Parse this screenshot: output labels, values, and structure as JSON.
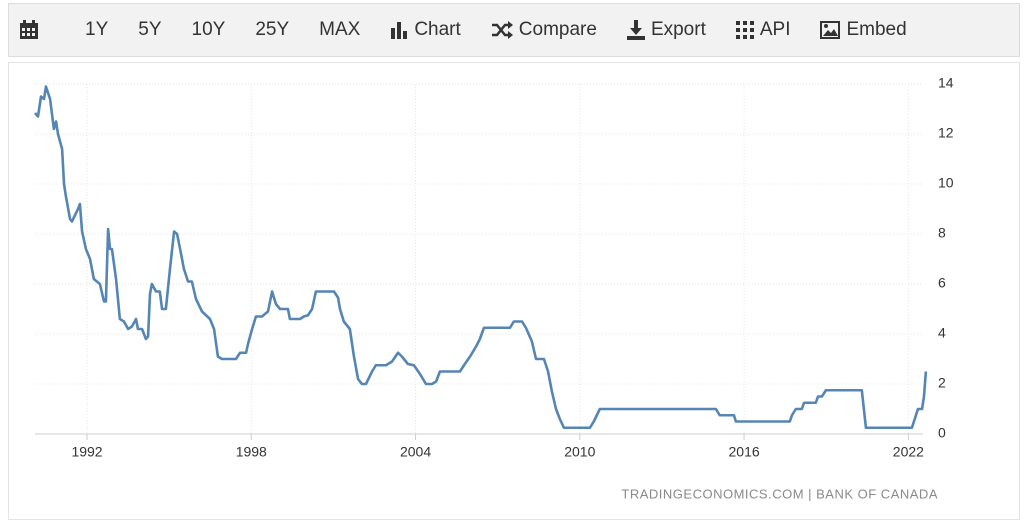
{
  "toolbar": [
    "1Y",
    "5Y",
    "10Y",
    "25Y",
    "MAX",
    "Chart",
    "Compare",
    "Export",
    "API",
    "Embed"
  ],
  "chart_data": {
    "type": "line",
    "source": "TRADINGECONOMICS.COM | BANK OF CANADA",
    "color": "#5585b5",
    "grid": true,
    "x": [
      1990.1,
      1990.21,
      1990.32,
      1990.43,
      1990.5,
      1990.65,
      1990.79,
      1990.87,
      1990.94,
      1991.09,
      1991.16,
      1991.23,
      1991.38,
      1991.45,
      1991.67,
      1991.74,
      1991.82,
      1991.96,
      1992.11,
      1992.25,
      1992.47,
      1992.62,
      1992.69,
      1992.77,
      1992.84,
      1992.91,
      1993.06,
      1993.2,
      1993.35,
      1993.5,
      1993.64,
      1993.79,
      1993.86,
      1994.01,
      1994.15,
      1994.23,
      1994.3,
      1994.37,
      1994.52,
      1994.66,
      1994.74,
      1994.88,
      1995.03,
      1995.18,
      1995.29,
      1995.4,
      1995.54,
      1995.69,
      1995.83,
      1995.98,
      1996.2,
      1996.49,
      1996.64,
      1996.78,
      1996.93,
      1997.22,
      1997.44,
      1997.59,
      1997.81,
      1997.88,
      1998.03,
      1998.17,
      1998.39,
      1998.61,
      1998.76,
      1998.9,
      1999.05,
      1999.34,
      1999.41,
      1999.78,
      1999.92,
      2000.07,
      2000.22,
      2000.36,
      2000.87,
      2001.02,
      2001.17,
      2001.24,
      2001.38,
      2001.6,
      2001.75,
      2001.9,
      2002.04,
      2002.19,
      2002.41,
      2002.55,
      2002.92,
      2003.14,
      2003.36,
      2003.5,
      2003.72,
      2003.94,
      2004.16,
      2004.38,
      2004.6,
      2004.75,
      2004.89,
      2005.62,
      2005.77,
      2005.99,
      2006.21,
      2006.35,
      2006.5,
      2007.45,
      2007.59,
      2007.89,
      2008.03,
      2008.25,
      2008.4,
      2008.69,
      2008.84,
      2008.98,
      2009.13,
      2009.27,
      2009.42,
      2010.37,
      2010.51,
      2010.73,
      2014.97,
      2015.11,
      2015.63,
      2015.7,
      2017.67,
      2017.75,
      2017.89,
      2018.11,
      2018.19,
      2018.62,
      2018.7,
      2018.84,
      2018.99,
      2020.3,
      2020.45,
      2022.13,
      2022.35,
      2022.5,
      2022.57,
      2022.64
    ],
    "values": [
      12.84,
      12.7,
      13.5,
      13.4,
      13.9,
      13.4,
      12.2,
      12.5,
      12.0,
      11.4,
      10.0,
      9.5,
      8.6,
      8.5,
      9.0,
      9.2,
      8.1,
      7.4,
      7.0,
      6.2,
      6.0,
      5.3,
      5.3,
      8.2,
      7.4,
      7.4,
      6.2,
      4.6,
      4.5,
      4.2,
      4.3,
      4.6,
      4.2,
      4.2,
      3.8,
      3.9,
      5.6,
      6.0,
      5.7,
      5.7,
      5.0,
      5.0,
      6.6,
      8.1,
      8.0,
      7.4,
      6.6,
      6.1,
      6.1,
      5.4,
      4.9,
      4.6,
      4.2,
      3.1,
      3.0,
      3.0,
      3.0,
      3.25,
      3.25,
      3.6,
      4.2,
      4.7,
      4.7,
      4.9,
      5.7,
      5.2,
      5.0,
      5.0,
      4.6,
      4.6,
      4.7,
      4.75,
      5.0,
      5.7,
      5.7,
      5.7,
      5.45,
      5.0,
      4.5,
      4.2,
      3.1,
      2.2,
      2.0,
      2.0,
      2.5,
      2.75,
      2.75,
      2.9,
      3.25,
      3.1,
      2.8,
      2.75,
      2.4,
      2.0,
      2.0,
      2.1,
      2.5,
      2.5,
      2.75,
      3.1,
      3.5,
      3.8,
      4.25,
      4.25,
      4.5,
      4.5,
      4.25,
      3.7,
      3.0,
      3.0,
      2.5,
      1.7,
      1.0,
      0.6,
      0.25,
      0.25,
      0.5,
      1.0,
      1.0,
      0.75,
      0.75,
      0.5,
      0.5,
      0.75,
      1.0,
      1.0,
      1.25,
      1.25,
      1.5,
      1.5,
      1.75,
      1.75,
      0.25,
      0.25,
      1.0,
      1.0,
      1.5,
      2.5
    ],
    "xlim": [
      1990.1,
      2022.9
    ],
    "xticks": [
      1992,
      1998,
      2004,
      2010,
      2016,
      2022
    ],
    "ylim": [
      0,
      14
    ],
    "yticks": [
      0,
      2,
      4,
      6,
      8,
      10,
      12,
      14
    ]
  }
}
